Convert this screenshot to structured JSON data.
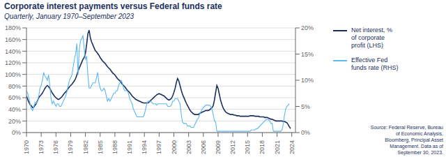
{
  "chart_data": {
    "type": "line",
    "title": "Corporate interest payments versus Federal funds rate",
    "subtitle": "Quarterly, January 1970–September 2023",
    "annotations": [
      "Source: Federal Reserve, Bureau\nof Economic Analysis,\nBloomberg, Principal Asset\nManagement. Data as of\nSeptember 30, 2023."
    ],
    "x": [
      1970,
      1970.25,
      1970.5,
      1970.75,
      1971,
      1971.25,
      1971.5,
      1971.75,
      1972,
      1972.25,
      1972.5,
      1972.75,
      1973,
      1973.25,
      1973.5,
      1973.75,
      1974,
      1974.25,
      1974.5,
      1974.75,
      1975,
      1975.25,
      1975.5,
      1975.75,
      1976,
      1976.25,
      1976.5,
      1976.75,
      1977,
      1977.25,
      1977.5,
      1977.75,
      1978,
      1978.25,
      1978.5,
      1978.75,
      1979,
      1979.25,
      1979.5,
      1979.75,
      1980,
      1980.25,
      1980.5,
      1980.75,
      1981,
      1981.25,
      1981.5,
      1981.75,
      1982,
      1982.25,
      1982.5,
      1982.75,
      1983,
      1983.25,
      1983.5,
      1983.75,
      1984,
      1984.25,
      1984.5,
      1984.75,
      1985,
      1985.25,
      1985.5,
      1985.75,
      1986,
      1986.25,
      1986.5,
      1986.75,
      1987,
      1987.25,
      1987.5,
      1987.75,
      1988,
      1988.25,
      1988.5,
      1988.75,
      1989,
      1989.25,
      1989.5,
      1989.75,
      1990,
      1990.25,
      1990.5,
      1990.75,
      1991,
      1991.25,
      1991.5,
      1991.75,
      1992,
      1992.25,
      1992.5,
      1992.75,
      1993,
      1993.25,
      1993.5,
      1993.75,
      1994,
      1994.25,
      1994.5,
      1994.75,
      1995,
      1995.25,
      1995.5,
      1995.75,
      1996,
      1996.25,
      1996.5,
      1996.75,
      1997,
      1997.25,
      1997.5,
      1997.75,
      1998,
      1998.25,
      1998.5,
      1998.75,
      1999,
      1999.25,
      1999.5,
      1999.75,
      2000,
      2000.25,
      2000.5,
      2000.75,
      2001,
      2001.25,
      2001.5,
      2001.75,
      2002,
      2002.25,
      2002.5,
      2002.75,
      2003,
      2003.25,
      2003.5,
      2003.75,
      2004,
      2004.25,
      2004.5,
      2004.75,
      2005,
      2005.25,
      2005.5,
      2005.75,
      2006,
      2006.25,
      2006.5,
      2006.75,
      2007,
      2007.25,
      2007.5,
      2007.75,
      2008,
      2008.25,
      2008.5,
      2008.75,
      2009,
      2009.25,
      2009.5,
      2009.75,
      2010,
      2010.25,
      2010.5,
      2010.75,
      2011,
      2011.25,
      2011.5,
      2011.75,
      2012,
      2012.25,
      2012.5,
      2012.75,
      2013,
      2013.25,
      2013.5,
      2013.75,
      2014,
      2014.25,
      2014.5,
      2014.75,
      2015,
      2015.25,
      2015.5,
      2015.75,
      2016,
      2016.25,
      2016.5,
      2016.75,
      2017,
      2017.25,
      2017.5,
      2017.75,
      2018,
      2018.25,
      2018.5,
      2018.75,
      2019,
      2019.25,
      2019.5,
      2019.75,
      2020,
      2020.25,
      2020.5,
      2020.75,
      2021,
      2021.25,
      2021.5,
      2021.75,
      2022,
      2022.25,
      2022.5,
      2022.75,
      2023,
      2023.25,
      2023.5,
      2023.75
    ],
    "series": [
      {
        "name": "Net interest, %\nof corporate\nprofit (LHS)",
        "color": "#1b2f5e",
        "values": [
          63,
          57,
          52,
          48,
          46,
          43,
          44,
          47,
          50,
          55,
          60,
          63,
          65,
          68,
          72,
          76,
          79,
          81,
          79,
          76,
          72,
          68,
          65,
          62,
          60,
          58,
          57,
          58,
          60,
          62,
          65,
          68,
          70,
          73,
          76,
          79,
          81,
          83,
          86,
          89,
          93,
          99,
          106,
          111,
          116,
          121,
          126,
          129,
          136,
          152,
          170,
          176,
          163,
          156,
          151,
          146,
          141,
          139,
          136,
          133,
          129,
          126,
          123,
          121,
          119,
          116,
          113,
          111,
          109,
          106,
          103,
          101,
          99,
          96,
          93,
          91,
          89,
          86,
          83,
          81,
          79,
          76,
          73,
          71,
          69,
          66,
          63,
          61,
          59,
          57,
          56,
          55,
          54,
          53,
          52,
          51,
          51,
          51,
          51,
          51,
          53,
          55,
          57,
          59,
          61,
          63,
          65,
          66,
          67,
          66,
          65,
          64,
          63,
          61,
          59,
          57,
          56,
          57,
          59,
          63,
          69,
          76,
          86,
          93,
          89,
          81,
          73,
          66,
          61,
          56,
          51,
          47,
          43,
          39,
          36,
          34,
          32,
          31,
          31,
          31,
          31,
          33,
          34,
          35,
          36,
          37,
          38,
          38,
          38,
          39,
          41,
          43,
          46,
          56,
          69,
          81,
          76,
          66,
          56,
          49,
          43,
          39,
          36,
          34,
          33,
          32,
          31,
          31,
          31,
          30,
          30,
          29,
          29,
          29,
          28,
          28,
          28,
          28,
          28,
          28,
          28,
          28,
          29,
          29,
          29,
          29,
          28,
          28,
          28,
          28,
          27,
          27,
          27,
          27,
          26,
          26,
          26,
          25,
          24,
          23,
          23,
          22,
          21,
          20,
          20,
          20,
          20,
          20,
          20,
          19,
          19,
          18,
          17,
          14,
          10,
          7
        ]
      },
      {
        "name": "Effective Fed\nfunds rate (RHS)",
        "color": "#5bb8f5",
        "axis": "y2",
        "values": [
          8.0,
          7.5,
          6.5,
          5.5,
          4.5,
          4.2,
          5.0,
          5.8,
          5.5,
          6.0,
          7.0,
          8.5,
          9.0,
          10.0,
          11.5,
          10.8,
          10.5,
          10.0,
          11.0,
          9.0,
          6.5,
          5.5,
          6.0,
          5.5,
          5.0,
          5.5,
          5.5,
          5.0,
          5.0,
          5.5,
          6.0,
          6.5,
          7.0,
          8.0,
          9.0,
          10.0,
          10.5,
          11.0,
          12.5,
          14.0,
          15.0,
          17.0,
          11.0,
          16.0,
          17.5,
          18.0,
          18.5,
          16.0,
          14.0,
          14.5,
          11.0,
          8.5,
          8.5,
          9.0,
          9.5,
          9.5,
          9.5,
          10.5,
          11.5,
          9.5,
          8.5,
          8.0,
          8.0,
          8.5,
          8.0,
          7.0,
          6.0,
          6.5,
          6.0,
          6.5,
          7.0,
          7.5,
          7.5,
          8.0,
          8.0,
          9.0,
          9.5,
          10.0,
          9.5,
          8.5,
          8.0,
          8.0,
          8.0,
          7.5,
          6.5,
          6.0,
          5.5,
          4.5,
          4.0,
          3.5,
          3.0,
          3.0,
          3.0,
          3.0,
          3.0,
          3.0,
          3.5,
          4.5,
          5.5,
          6.0,
          6.0,
          6.0,
          5.75,
          5.5,
          5.5,
          5.5,
          5.25,
          5.5,
          5.5,
          5.5,
          5.5,
          5.5,
          5.5,
          5.5,
          5.5,
          5.0,
          5.0,
          5.0,
          5.25,
          6.0,
          6.0,
          6.5,
          6.5,
          6.5,
          6.0,
          5.5,
          3.5,
          2.0,
          1.75,
          1.75,
          1.75,
          1.25,
          1.25,
          1.25,
          1.0,
          1.0,
          1.0,
          1.5,
          2.0,
          2.5,
          2.75,
          3.5,
          4.0,
          4.5,
          4.75,
          5.0,
          5.25,
          5.25,
          5.25,
          5.25,
          5.0,
          4.5,
          3.5,
          2.25,
          2.0,
          0.25,
          0.25,
          0.25,
          0.25,
          0.25,
          0.25,
          0.25,
          0.25,
          0.25,
          0.25,
          0.25,
          0.25,
          0.25,
          0.25,
          0.25,
          0.25,
          0.25,
          0.25,
          0.25,
          0.25,
          0.25,
          0.25,
          0.25,
          0.25,
          0.25,
          0.25,
          0.25,
          0.25,
          0.5,
          0.5,
          0.5,
          0.5,
          0.75,
          0.75,
          1.0,
          1.25,
          1.5,
          1.75,
          2.0,
          2.25,
          2.5,
          2.5,
          2.5,
          2.25,
          1.75,
          1.75,
          0.25,
          0.25,
          0.25,
          0.25,
          0.25,
          0.25,
          0.25,
          0.5,
          1.5,
          3.25,
          4.5,
          5.0,
          5.25,
          5.5,
          null
        ]
      }
    ],
    "xlim": [
      1970,
      2024.75
    ],
    "xticks": [
      1970,
      1973,
      1976,
      1979,
      1982,
      1985,
      1988,
      1991,
      1994,
      1997,
      2000,
      2003,
      2006,
      2009,
      2012,
      2015,
      2018,
      2021,
      2024
    ],
    "ylim": [
      0,
      180
    ],
    "yticks": [
      {
        "value": 0,
        "label": "0%"
      },
      {
        "value": 20,
        "label": "20%"
      },
      {
        "value": 40,
        "label": "40%"
      },
      {
        "value": 60,
        "label": "60%"
      },
      {
        "value": 80,
        "label": "80%"
      },
      {
        "value": 100,
        "label": "100%"
      },
      {
        "value": 120,
        "label": "120%"
      },
      {
        "value": 140,
        "label": "140%"
      },
      {
        "value": 160,
        "label": "160%"
      },
      {
        "value": 180,
        "label": "180%"
      }
    ],
    "y2lim": [
      0,
      20
    ],
    "y2ticks": [
      {
        "value": 0,
        "label": "0%"
      },
      {
        "value": 5,
        "label": "5%"
      },
      {
        "value": 10,
        "label": "10%"
      },
      {
        "value": 15,
        "label": "15%"
      },
      {
        "value": 20,
        "label": "20%"
      }
    ],
    "grid": true,
    "legend": "right"
  }
}
